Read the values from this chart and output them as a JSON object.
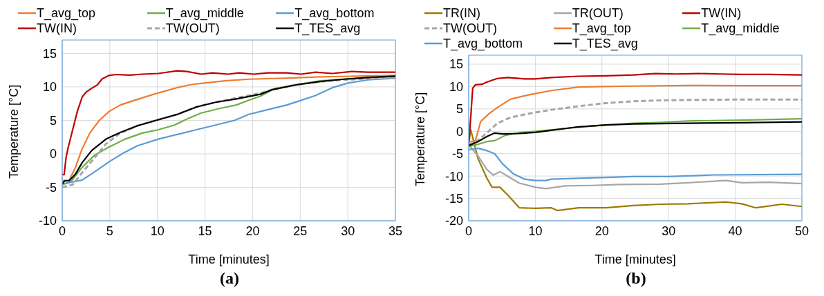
{
  "chart_data": [
    {
      "type": "line",
      "title": "(a)",
      "xlabel": "Time [minutes]",
      "ylabel": "Temperature [°C]",
      "xlim": [
        0,
        35
      ],
      "xticks": [
        0,
        5,
        10,
        15,
        20,
        25,
        30,
        35
      ],
      "ylim": [
        -10,
        17
      ],
      "yticks": [
        -10,
        -5,
        0,
        5,
        10,
        15
      ],
      "grid": true,
      "legend": "top",
      "series": [
        {
          "name": "T_avg_top",
          "color": "#ed7d31",
          "x": [
            0,
            0.75,
            1.4,
            2.1,
            2.9,
            3.9,
            4.9,
            6.1,
            7.6,
            9.6,
            12.1,
            13.6,
            15.1,
            17.1,
            19.6,
            23.4,
            27.1,
            30.9,
            35
          ],
          "values": [
            -4.0,
            -3.9,
            -2.0,
            0.8,
            3.1,
            5.0,
            6.3,
            7.3,
            8.0,
            8.9,
            9.9,
            10.35,
            10.6,
            10.9,
            11.15,
            11.3,
            11.5,
            11.6,
            11.7
          ]
        },
        {
          "name": "T_avg_middle",
          "color": "#70ad47",
          "x": [
            0,
            0.9,
            2.1,
            3.4,
            4.9,
            6.6,
            8.4,
            10.1,
            11.8,
            13.1,
            14.6,
            16.6,
            18.3,
            19.6,
            20.8,
            21.6,
            22.3,
            24.6,
            27.1,
            29.6,
            32.1,
            35
          ],
          "values": [
            -4.6,
            -4.2,
            -2.0,
            -0.2,
            1.0,
            2.2,
            3.1,
            3.6,
            4.3,
            5.2,
            6.1,
            6.8,
            7.3,
            8.0,
            8.6,
            9.2,
            9.75,
            10.35,
            10.9,
            11.15,
            11.4,
            11.55
          ]
        },
        {
          "name": "T_avg_bottom",
          "color": "#5b9bd5",
          "x": [
            0,
            1.1,
            2.1,
            3.4,
            4.9,
            6.4,
            7.9,
            10.1,
            12.1,
            14.1,
            16.1,
            18.1,
            19.6,
            21.6,
            23.6,
            25.1,
            26.6,
            28.4,
            30.1,
            32.1,
            35
          ],
          "values": [
            -4.5,
            -4.2,
            -3.9,
            -2.7,
            -1.2,
            0.1,
            1.2,
            2.2,
            2.9,
            3.6,
            4.3,
            5.0,
            5.9,
            6.6,
            7.3,
            8.0,
            8.7,
            9.9,
            10.6,
            11.05,
            11.3
          ]
        },
        {
          "name": "TW(IN)",
          "color": "#c00000",
          "x": [
            0,
            0.2,
            0.4,
            0.6,
            1.1,
            1.6,
            2.1,
            2.5,
            3.1,
            3.7,
            4.2,
            4.9,
            5.6,
            7.1,
            8.4,
            10.1,
            12.1,
            13.1,
            14.6,
            15.8,
            17.4,
            18.6,
            20.1,
            21.6,
            23.6,
            25.1,
            26.6,
            28.4,
            30.4,
            32.1,
            35
          ],
          "values": [
            -3.1,
            -3.1,
            -0.6,
            0.8,
            3.6,
            6.4,
            8.5,
            9.2,
            9.8,
            10.3,
            11.2,
            11.7,
            11.85,
            11.75,
            11.9,
            12.0,
            12.4,
            12.3,
            11.9,
            12.1,
            11.9,
            12.1,
            11.9,
            12.1,
            12.1,
            11.9,
            12.2,
            12.0,
            12.3,
            12.2,
            12.2
          ]
        },
        {
          "name": "TW(OUT)",
          "color": "#a6a6a6",
          "line_style": "dashed",
          "x": [
            0,
            1.1,
            2.1,
            3.4,
            4.6,
            6.1,
            7.9,
            10.1,
            12.1,
            14.1,
            16.1,
            18.3,
            20.8,
            22.1,
            24.6,
            27.1,
            29.6,
            32.1,
            35
          ],
          "values": [
            -5.0,
            -4.6,
            -2.8,
            -0.6,
            1.5,
            3.1,
            4.2,
            5.1,
            5.9,
            7.0,
            7.7,
            8.35,
            9.05,
            9.6,
            10.35,
            10.8,
            11.05,
            11.25,
            11.3
          ]
        },
        {
          "name": "T_TES_avg",
          "color": "#000000",
          "x": [
            0,
            0.25,
            0.75,
            1.4,
            2.1,
            3.1,
            4.6,
            6.1,
            7.9,
            10.1,
            12.1,
            14.1,
            16.1,
            18.3,
            20.8,
            22.1,
            24.6,
            27.1,
            29.6,
            32.1,
            35
          ],
          "values": [
            -4.5,
            -4.05,
            -4.0,
            -3.0,
            -1.3,
            0.5,
            2.2,
            3.2,
            4.2,
            5.1,
            5.9,
            7.0,
            7.7,
            8.2,
            8.9,
            9.6,
            10.3,
            10.8,
            11.15,
            11.4,
            11.6
          ]
        }
      ]
    },
    {
      "type": "line",
      "title": "(b)",
      "xlabel": "Time [minutes]",
      "ylabel": "Temperature [°C]",
      "xlim": [
        0,
        50
      ],
      "xticks": [
        0,
        10,
        20,
        30,
        40,
        50
      ],
      "ylim": [
        -20,
        17
      ],
      "yticks": [
        -20,
        -15,
        -10,
        -5,
        0,
        5,
        10,
        15
      ],
      "grid": true,
      "legend": "top",
      "series": [
        {
          "name": "TR(IN)",
          "color": "#9c7a00",
          "x": [
            0,
            0.3,
            1.4,
            2.7,
            3.5,
            4.7,
            5.9,
            7.6,
            10,
            12.4,
            13.3,
            16.5,
            20.6,
            24.7,
            28.8,
            32.9,
            38.6,
            41,
            43.1,
            47,
            50
          ],
          "values": [
            -3.0,
            0.4,
            -6.1,
            -10.4,
            -12.5,
            -12.5,
            -14.3,
            -17.1,
            -17.2,
            -17.1,
            -17.7,
            -17.1,
            -17.1,
            -16.6,
            -16.3,
            -16.2,
            -15.8,
            -16.2,
            -17.1,
            -16.3,
            -16.8
          ]
        },
        {
          "name": "TR(OUT)",
          "color": "#a6a6a6",
          "x": [
            0,
            1.4,
            2.7,
            3.7,
            4.7,
            5.9,
            7.6,
            10,
            11.6,
            14.5,
            18.6,
            22.7,
            28.8,
            32.9,
            38.6,
            41,
            45.1,
            50
          ],
          "values": [
            -3.0,
            -5.5,
            -8.5,
            -9.8,
            -9.0,
            -10.1,
            -11.6,
            -12.5,
            -12.8,
            -12.2,
            -12.1,
            -11.9,
            -11.8,
            -11.5,
            -11.0,
            -11.5,
            -11.4,
            -11.7
          ]
        },
        {
          "name": "TW(IN)",
          "color": "#c00000",
          "x": [
            0,
            0.3,
            0.6,
            1.0,
            2.0,
            2.7,
            4.3,
            5.9,
            8.4,
            10,
            12.4,
            16.5,
            20.6,
            24.7,
            28,
            31.2,
            34.5,
            37.8,
            41,
            45.1,
            50
          ],
          "values": [
            -3.0,
            3.0,
            9.6,
            10.4,
            10.5,
            11.0,
            11.8,
            12.0,
            11.7,
            11.7,
            12.0,
            12.3,
            12.4,
            12.6,
            12.9,
            12.8,
            12.9,
            12.8,
            12.7,
            12.7,
            12.6
          ]
        },
        {
          "name": "TW(OUT)",
          "color": "#a6a6a6",
          "line_style": "dashed",
          "x": [
            0,
            1,
            2.7,
            4.3,
            6.3,
            9.2,
            12.4,
            16.5,
            20.6,
            24.7,
            28.8,
            32.9,
            41,
            50
          ],
          "values": [
            -3.0,
            -2.5,
            -0.4,
            1.8,
            3.1,
            4.0,
            4.8,
            5.6,
            6.3,
            6.7,
            6.9,
            7.0,
            7.1,
            7.1
          ]
        },
        {
          "name": "T_avg_top",
          "color": "#ed7d31",
          "x": [
            0,
            1,
            1.8,
            3.1,
            4.3,
            6.3,
            9.2,
            12.4,
            16.5,
            20.6,
            24.7,
            32.9,
            41,
            50
          ],
          "values": [
            -2.4,
            -2.1,
            2.2,
            4.0,
            5.3,
            7.2,
            8.2,
            9.1,
            9.9,
            10.0,
            10.1,
            10.25,
            10.2,
            10.2
          ]
        },
        {
          "name": "T_avg_middle",
          "color": "#70ad47",
          "x": [
            0,
            1.4,
            2.7,
            3.9,
            5.5,
            7.6,
            10,
            16.5,
            20.6,
            24.7,
            28.8,
            32.9,
            41,
            50
          ],
          "values": [
            -3.4,
            -2.9,
            -2.3,
            -2.1,
            -0.9,
            -0.3,
            0,
            0.9,
            1.4,
            1.8,
            2.0,
            2.3,
            2.5,
            2.8
          ]
        },
        {
          "name": "T_avg_bottom",
          "color": "#5b9bd5",
          "x": [
            0,
            1.4,
            2.7,
            3.9,
            5.1,
            6.7,
            8.4,
            10,
            11.6,
            12.4,
            16.5,
            20.6,
            24.7,
            30,
            36.9,
            50
          ],
          "values": [
            -4.1,
            -3.8,
            -4.3,
            -5.0,
            -7.3,
            -9.5,
            -10.7,
            -11.0,
            -11.0,
            -10.7,
            -10.5,
            -10.3,
            -10.1,
            -10.1,
            -9.75,
            -9.6
          ]
        },
        {
          "name": "T_TES_avg",
          "color": "#000000",
          "x": [
            0,
            1.4,
            2.7,
            3.9,
            5.1,
            7.6,
            10,
            16.5,
            20.6,
            24.7,
            32.9,
            41,
            50
          ],
          "values": [
            -3.2,
            -2.3,
            -1.2,
            -0.4,
            -0.6,
            -0.5,
            -0.25,
            1.0,
            1.4,
            1.65,
            1.8,
            1.9,
            2.1
          ]
        }
      ]
    }
  ]
}
